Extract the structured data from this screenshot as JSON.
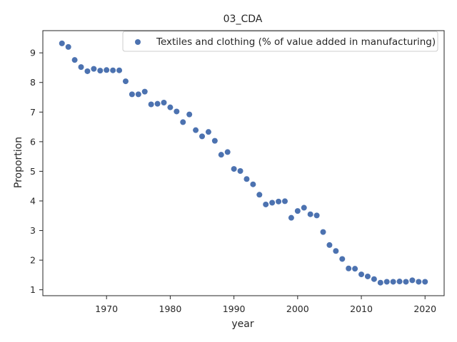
{
  "chart_data": {
    "type": "scatter",
    "title": "03_CDA",
    "xlabel": "year",
    "ylabel": "Proportion",
    "xlim": [
      1960,
      2023
    ],
    "ylim": [
      0.8,
      9.75
    ],
    "x_ticks": [
      1970,
      1980,
      1990,
      2000,
      2010,
      2020
    ],
    "y_ticks": [
      1,
      2,
      3,
      4,
      5,
      6,
      7,
      8,
      9
    ],
    "grid": false,
    "legend_position": "top-right",
    "series": [
      {
        "name": "Textiles and clothing (% of value added in manufacturing)",
        "color": "#4c72b0",
        "x": [
          1963,
          1964,
          1965,
          1966,
          1967,
          1968,
          1969,
          1970,
          1971,
          1972,
          1973,
          1974,
          1975,
          1976,
          1977,
          1978,
          1979,
          1980,
          1981,
          1982,
          1983,
          1984,
          1985,
          1986,
          1987,
          1988,
          1989,
          1990,
          1991,
          1992,
          1993,
          1994,
          1995,
          1996,
          1997,
          1998,
          1999,
          2000,
          2001,
          2002,
          2003,
          2004,
          2005,
          2006,
          2007,
          2008,
          2009,
          2010,
          2011,
          2012,
          2013,
          2014,
          2015,
          2016,
          2017,
          2018,
          2019,
          2020
        ],
        "y": [
          9.32,
          9.2,
          8.76,
          8.52,
          8.38,
          8.46,
          8.4,
          8.42,
          8.41,
          8.41,
          8.04,
          7.6,
          7.6,
          7.69,
          7.26,
          7.28,
          7.32,
          7.16,
          7.02,
          6.66,
          6.92,
          6.39,
          6.18,
          6.33,
          6.03,
          5.56,
          5.65,
          5.08,
          5.01,
          4.74,
          4.56,
          4.21,
          3.88,
          3.94,
          3.98,
          3.99,
          3.43,
          3.66,
          3.77,
          3.55,
          3.51,
          2.95,
          2.51,
          2.31,
          2.04,
          1.72,
          1.71,
          1.52,
          1.45,
          1.36,
          1.24,
          1.27,
          1.27,
          1.28,
          1.27,
          1.32,
          1.27,
          1.27
        ]
      }
    ]
  }
}
